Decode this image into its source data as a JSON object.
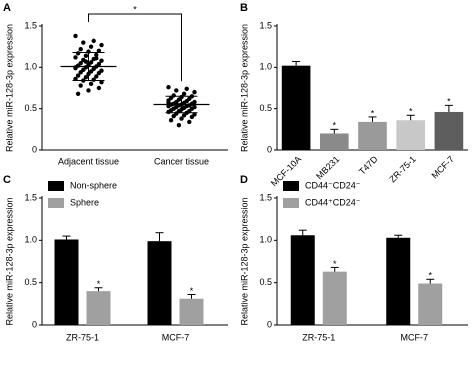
{
  "chart_data": [
    {
      "type": "dot_plot",
      "panel_label": "A",
      "y_label": "Relative miR-128-3p expression",
      "categories": [
        "Adjacent tissue",
        "Cancer tissue"
      ],
      "values": [
        [
          1.38,
          1.32,
          1.3,
          1.27,
          1.25,
          1.22,
          1.2,
          1.19,
          1.17,
          1.15,
          1.14,
          1.12,
          1.1,
          1.09,
          1.08,
          1.06,
          1.05,
          1.04,
          1.03,
          1.02,
          1.01,
          1.0,
          0.99,
          0.98,
          0.97,
          0.96,
          0.95,
          0.94,
          0.93,
          0.92,
          0.9,
          0.89,
          0.88,
          0.86,
          0.85,
          0.84,
          0.82,
          0.8,
          0.78,
          0.75,
          0.72,
          0.68,
          1.11,
          1.07,
          1.0
        ],
        [
          0.76,
          0.74,
          0.72,
          0.7,
          0.68,
          0.66,
          0.65,
          0.64,
          0.63,
          0.62,
          0.61,
          0.6,
          0.59,
          0.58,
          0.58,
          0.57,
          0.56,
          0.56,
          0.55,
          0.55,
          0.54,
          0.54,
          0.53,
          0.53,
          0.52,
          0.52,
          0.51,
          0.5,
          0.5,
          0.49,
          0.48,
          0.47,
          0.47,
          0.46,
          0.45,
          0.44,
          0.43,
          0.42,
          0.41,
          0.4,
          0.38,
          0.36,
          0.34,
          0.3,
          0.57
        ]
      ],
      "mean": [
        1.01,
        0.55
      ],
      "sd": [
        0.17,
        0.1
      ],
      "significance": "*",
      "color": "#000000",
      "ylim": [
        0,
        1.5
      ],
      "yticks": [
        0,
        0.5,
        {
          "value": 1,
          "label": "1.0"
        },
        1.5
      ]
    },
    {
      "type": "bar",
      "panel_label": "B",
      "y_label": "Relative miR-128-3p expression",
      "categories": [
        "MCF-10A",
        "MB231",
        "T47D",
        "ZR-75-1",
        "MCF-7"
      ],
      "values": [
        1.02,
        0.2,
        0.34,
        0.36,
        0.46
      ],
      "errors": [
        0.05,
        0.05,
        0.06,
        0.06,
        0.08
      ],
      "colors": [
        "#000000",
        "#8a8a8a",
        "#9a9a9a",
        "#c8c8c8",
        "#5e5e5e"
      ],
      "significance": [
        null,
        "*",
        "*",
        "*",
        "*"
      ],
      "ylim": [
        0,
        1.5
      ],
      "yticks": [
        0,
        0.5,
        {
          "value": 1,
          "label": "1.0"
        },
        1.5
      ]
    },
    {
      "type": "grouped_bar",
      "panel_label": "C",
      "y_label": "Relative miR-128-3p expression",
      "categories": [
        "ZR-75-1",
        "MCF-7"
      ],
      "series": [
        {
          "name": "Non-sphere",
          "color": "#000000",
          "values": [
            1.01,
            0.99
          ],
          "errors": [
            0.04,
            0.1
          ]
        },
        {
          "name": "Sphere",
          "color": "#a0a0a0",
          "values": [
            0.4,
            0.31
          ],
          "errors": [
            0.04,
            0.05
          ],
          "significance": [
            "*",
            "*"
          ]
        }
      ],
      "ylim": [
        0,
        1.5
      ],
      "yticks": [
        0,
        0.5,
        {
          "value": 1,
          "label": "1.0"
        },
        1.5
      ]
    },
    {
      "type": "grouped_bar",
      "panel_label": "D",
      "y_label": "Relative miR-128-3p expression",
      "categories": [
        "ZR-75-1",
        "MCF-7"
      ],
      "series": [
        {
          "name": "CD44⁻CD24⁻",
          "color": "#000000",
          "values": [
            1.06,
            1.03
          ],
          "errors": [
            0.06,
            0.03
          ]
        },
        {
          "name": "CD44⁺CD24⁻",
          "color": "#a0a0a0",
          "values": [
            0.63,
            0.49
          ],
          "errors": [
            0.05,
            0.05
          ],
          "significance": [
            "*",
            "*"
          ]
        }
      ],
      "ylim": [
        0,
        1.5
      ],
      "yticks": [
        0,
        0.5,
        {
          "value": 1,
          "label": "1.0"
        },
        1.5
      ]
    }
  ]
}
